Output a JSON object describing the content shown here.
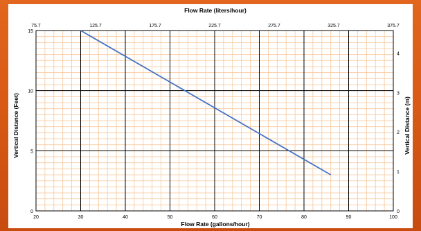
{
  "colors": {
    "background": "#d85a16",
    "plot_bg": "#ffffff",
    "minor_grid": "#f7c79a",
    "major_grid": "#000000",
    "line": "#4472c4"
  },
  "chart_data": {
    "type": "line",
    "title": "",
    "xlabel": "Flow Rate (gallons/hour)",
    "ylabel": "Vertical Distance (Feet)",
    "x2label": "Flow Rate (liters/hour)",
    "y2label": "Vertical Distance (m)",
    "xlim": [
      20,
      100
    ],
    "ylim": [
      0,
      15
    ],
    "x2lim": [
      75.7,
      375.7
    ],
    "y2lim": [
      0,
      4.57
    ],
    "x_ticks": [
      "20",
      "30",
      "40",
      "50",
      "60",
      "70",
      "80",
      "90",
      "100"
    ],
    "y_ticks": [
      "0",
      "5",
      "10",
      "15"
    ],
    "x2_ticks": [
      "75.7",
      "125.7",
      "175.7",
      "225.7",
      "275.7",
      "325.7",
      "375.7"
    ],
    "y2_ticks": [
      "0",
      "1",
      "2",
      "3",
      "4"
    ],
    "grid": true,
    "series": [
      {
        "x": [
          30,
          86
        ],
        "y": [
          15,
          3
        ]
      }
    ]
  }
}
